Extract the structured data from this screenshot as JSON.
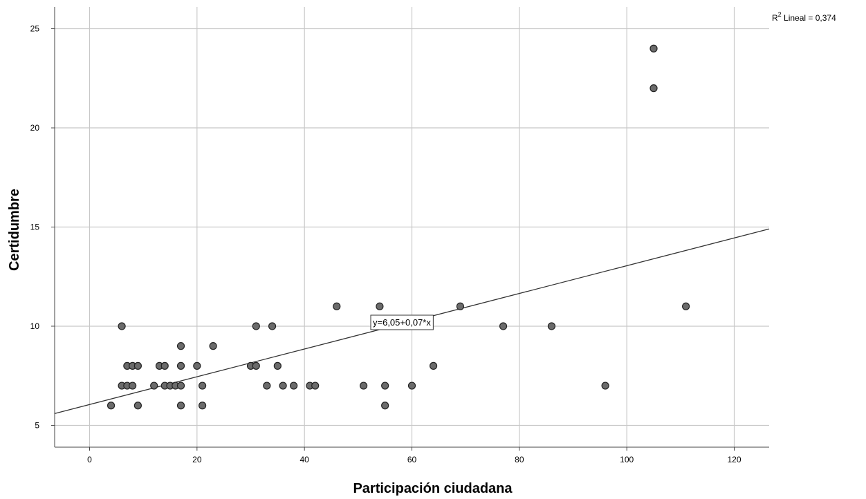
{
  "chart_data": {
    "type": "scatter",
    "title": "",
    "xlabel": "Participación ciudadana",
    "ylabel": "Certidumbre",
    "xlim": [
      -6.5,
      126.5
    ],
    "ylim": [
      3.9,
      26.1
    ],
    "xticks": [
      0,
      20,
      40,
      60,
      80,
      100,
      120
    ],
    "yticks": [
      5,
      10,
      15,
      20,
      25
    ],
    "xtick_labels": [
      "0",
      "20",
      "40",
      "60",
      "80",
      "100",
      "120"
    ],
    "ytick_labels": [
      "5",
      "10",
      "15",
      "20",
      "25"
    ],
    "grid": true,
    "points": [
      {
        "x": 4,
        "y": 6
      },
      {
        "x": 6,
        "y": 10
      },
      {
        "x": 6,
        "y": 7
      },
      {
        "x": 7,
        "y": 8
      },
      {
        "x": 7,
        "y": 7
      },
      {
        "x": 8,
        "y": 8
      },
      {
        "x": 8,
        "y": 7
      },
      {
        "x": 9,
        "y": 8
      },
      {
        "x": 9,
        "y": 6
      },
      {
        "x": 12,
        "y": 7
      },
      {
        "x": 13,
        "y": 8
      },
      {
        "x": 14,
        "y": 8
      },
      {
        "x": 14,
        "y": 7
      },
      {
        "x": 15,
        "y": 7
      },
      {
        "x": 16,
        "y": 7
      },
      {
        "x": 17,
        "y": 9
      },
      {
        "x": 17,
        "y": 8
      },
      {
        "x": 17,
        "y": 7
      },
      {
        "x": 17,
        "y": 6
      },
      {
        "x": 20,
        "y": 8
      },
      {
        "x": 21,
        "y": 7
      },
      {
        "x": 21,
        "y": 6
      },
      {
        "x": 23,
        "y": 9
      },
      {
        "x": 30,
        "y": 8
      },
      {
        "x": 31,
        "y": 10
      },
      {
        "x": 31,
        "y": 8
      },
      {
        "x": 33,
        "y": 7
      },
      {
        "x": 34,
        "y": 10
      },
      {
        "x": 35,
        "y": 8
      },
      {
        "x": 36,
        "y": 7
      },
      {
        "x": 38,
        "y": 7
      },
      {
        "x": 41,
        "y": 7
      },
      {
        "x": 42,
        "y": 7
      },
      {
        "x": 46,
        "y": 11
      },
      {
        "x": 51,
        "y": 7
      },
      {
        "x": 54,
        "y": 11
      },
      {
        "x": 55,
        "y": 7
      },
      {
        "x": 55,
        "y": 6
      },
      {
        "x": 60,
        "y": 7
      },
      {
        "x": 64,
        "y": 8
      },
      {
        "x": 69,
        "y": 11
      },
      {
        "x": 77,
        "y": 10
      },
      {
        "x": 86,
        "y": 10
      },
      {
        "x": 96,
        "y": 7
      },
      {
        "x": 105,
        "y": 24
      },
      {
        "x": 105,
        "y": 22
      },
      {
        "x": 111,
        "y": 11
      }
    ],
    "fit_line": {
      "intercept": 6.05,
      "slope": 0.07
    },
    "equation_label": "y=6,05+0,07*x",
    "r2_prefix": "R",
    "r2_sup": "2",
    "r2_suffix": " Lineal = 0,374",
    "colors": {
      "point_fill": "#6b6b6b",
      "point_stroke": "#222222",
      "grid": "#c8c8c8",
      "axis": "#444444",
      "line": "#333333"
    }
  }
}
